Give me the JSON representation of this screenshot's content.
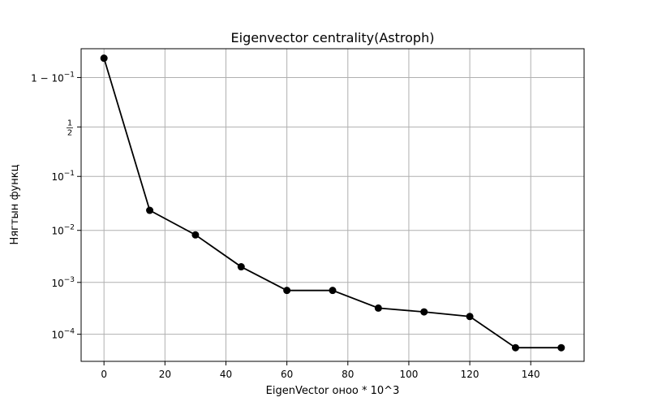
{
  "chart_data": {
    "type": "line",
    "title": "Eigenvector centrality(Astroph)",
    "xlabel": "EigenVector оноо * 10^3",
    "ylabel": "Нягтын функц",
    "x_ticks": [
      "0",
      "20",
      "40",
      "60",
      "80",
      "100",
      "120",
      "140"
    ],
    "x_tick_values": [
      0,
      20,
      40,
      60,
      80,
      100,
      120,
      140
    ],
    "y_ticks": [
      {
        "label": "10^{-4}",
        "value": 0.0001
      },
      {
        "label": "10^{-3}",
        "value": 0.001
      },
      {
        "label": "10^{-2}",
        "value": 0.01
      },
      {
        "label": "10^{-1}",
        "value": 0.1
      },
      {
        "label": "1/2",
        "value": 0.5
      },
      {
        "label": "1 − 10^{-1}",
        "value": 0.9
      }
    ],
    "y_scale": "logit",
    "xlim": [
      -7.5,
      157.5
    ],
    "ylim": [
      3e-05,
      0.97
    ],
    "grid": true,
    "series": [
      {
        "color": "#000000",
        "marker": "circle",
        "x": [
          0,
          15,
          30,
          45,
          60,
          75,
          90,
          105,
          120,
          135,
          150
        ],
        "y": [
          0.955,
          0.024,
          0.0082,
          0.002,
          0.0007,
          0.0007,
          0.00032,
          0.00027,
          0.00022,
          5.5e-05,
          5.5e-05
        ]
      }
    ]
  }
}
